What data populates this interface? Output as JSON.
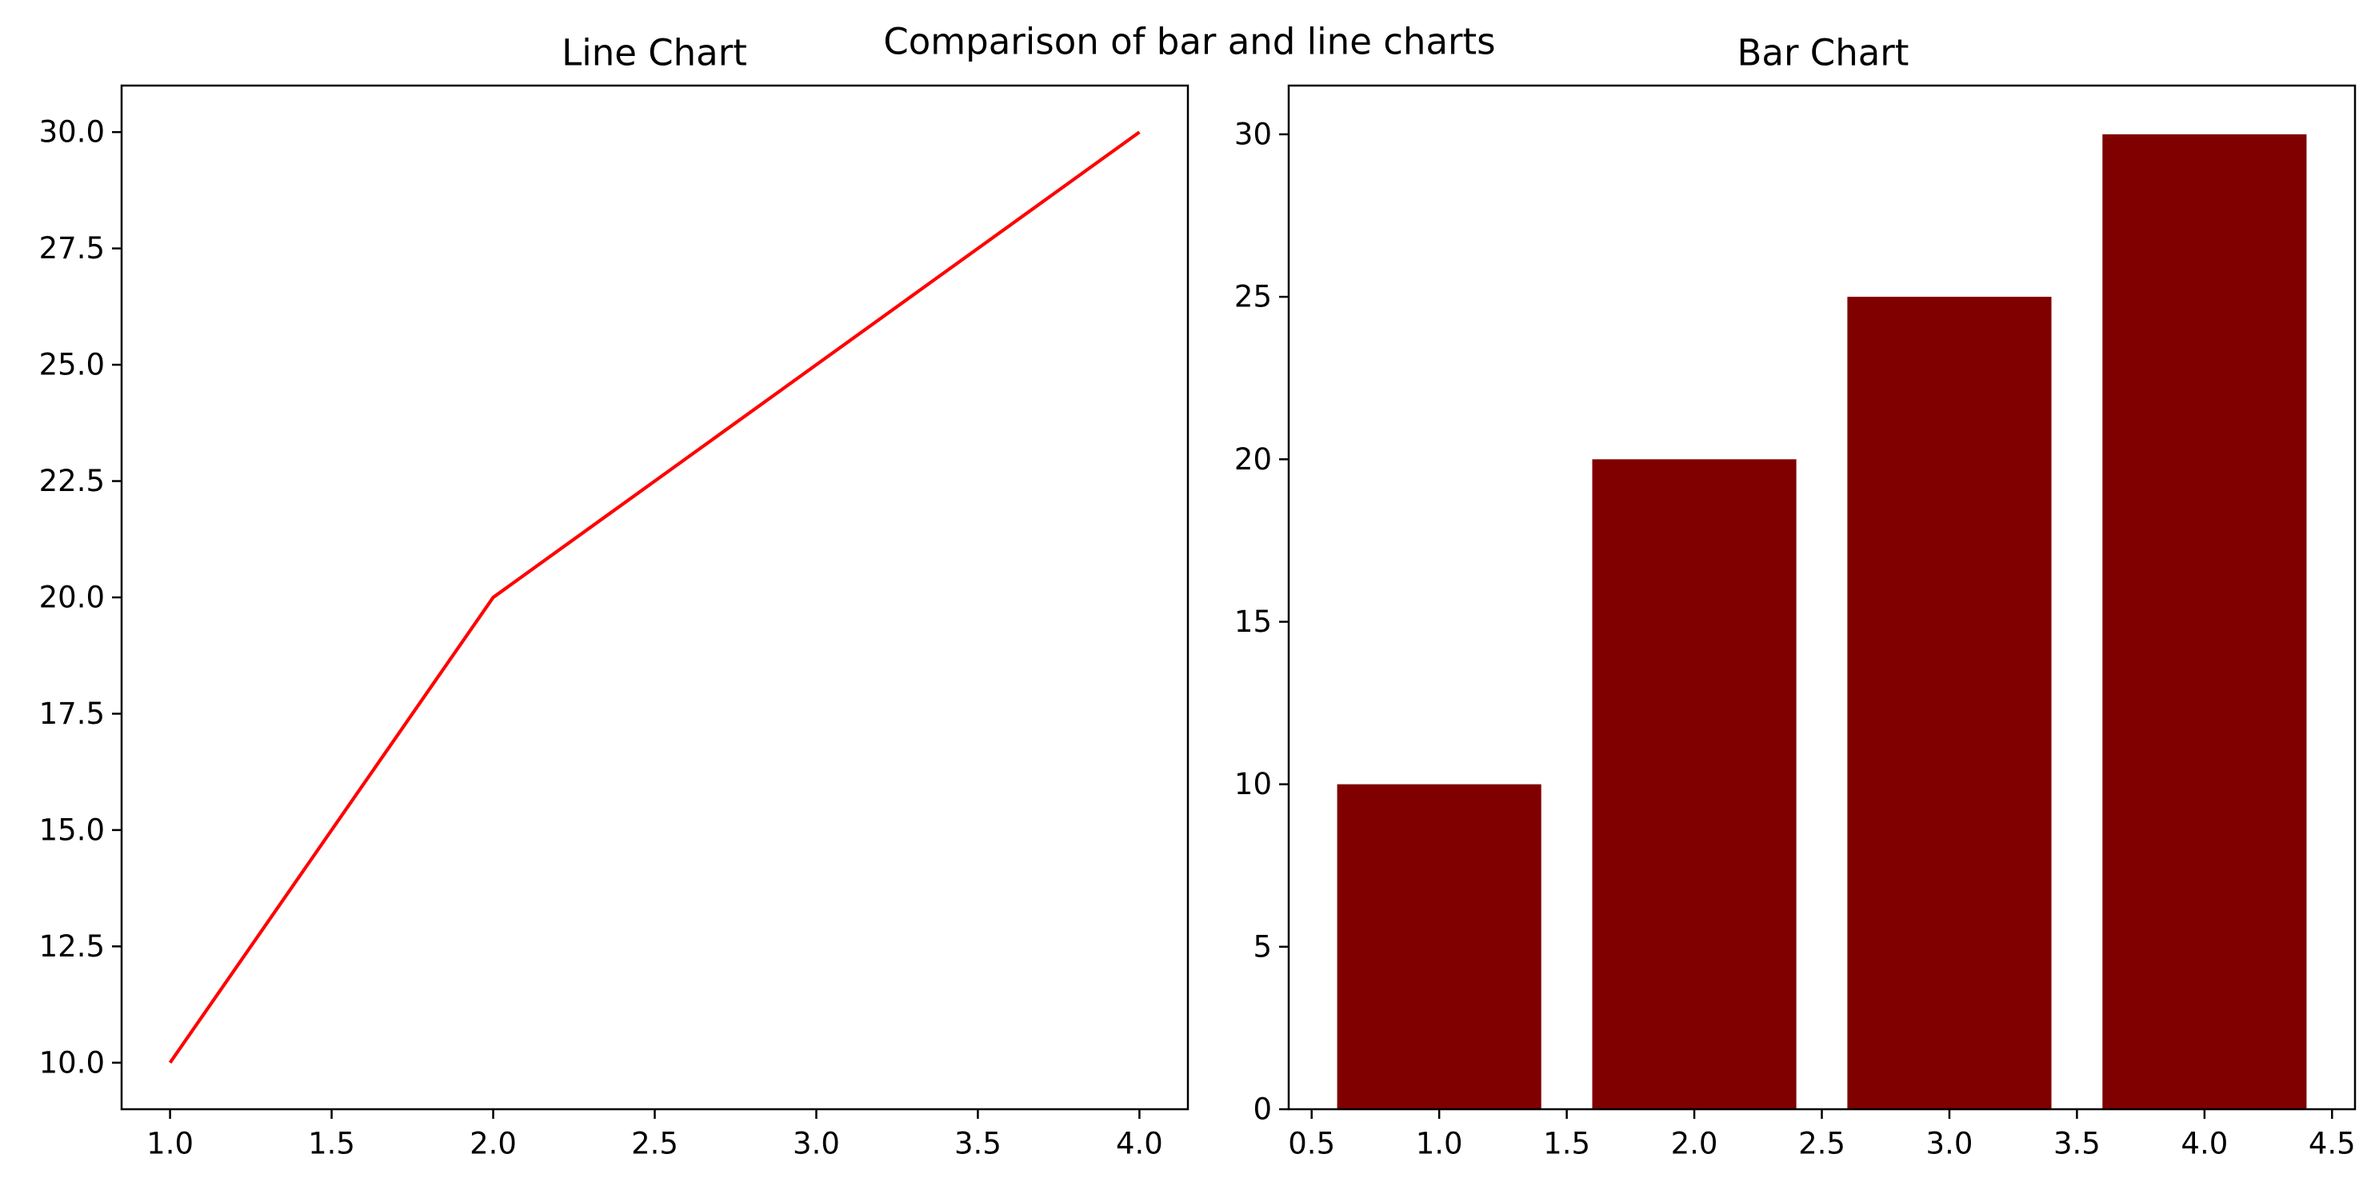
{
  "figure": {
    "suptitle": "Comparison of bar and line charts"
  },
  "chart_data": [
    {
      "type": "line",
      "title": "Line Chart",
      "xlabel": "",
      "ylabel": "",
      "x": [
        1,
        2,
        3,
        4
      ],
      "series": [
        {
          "values": [
            10,
            20,
            25,
            30
          ],
          "color": "#ff0000"
        }
      ],
      "xlim": [
        0.85,
        4.15
      ],
      "ylim": [
        9.0,
        31.0
      ],
      "xticks": [
        1.0,
        1.5,
        2.0,
        2.5,
        3.0,
        3.5,
        4.0
      ],
      "xtick_labels": [
        "1.0",
        "1.5",
        "2.0",
        "2.5",
        "3.0",
        "3.5",
        "4.0"
      ],
      "yticks": [
        10.0,
        12.5,
        15.0,
        17.5,
        20.0,
        22.5,
        25.0,
        27.5,
        30.0
      ],
      "ytick_labels": [
        "10.0",
        "12.5",
        "15.0",
        "17.5",
        "20.0",
        "22.5",
        "25.0",
        "27.5",
        "30.0"
      ],
      "grid": false,
      "legend": false
    },
    {
      "type": "bar",
      "title": "Bar Chart",
      "xlabel": "",
      "ylabel": "",
      "x": [
        1,
        2,
        3,
        4
      ],
      "values": [
        10,
        20,
        25,
        30
      ],
      "bar_width": 0.8,
      "color": "#800000",
      "xlim": [
        0.41,
        4.59
      ],
      "ylim": [
        0,
        31.5
      ],
      "xticks": [
        0.5,
        1.0,
        1.5,
        2.0,
        2.5,
        3.0,
        3.5,
        4.0,
        4.5
      ],
      "xtick_labels": [
        "0.5",
        "1.0",
        "1.5",
        "2.0",
        "2.5",
        "3.0",
        "3.5",
        "4.0",
        "4.5"
      ],
      "yticks": [
        0,
        5,
        10,
        15,
        20,
        25,
        30
      ],
      "ytick_labels": [
        "0",
        "5",
        "10",
        "15",
        "20",
        "25",
        "30"
      ],
      "grid": false,
      "legend": false
    }
  ]
}
